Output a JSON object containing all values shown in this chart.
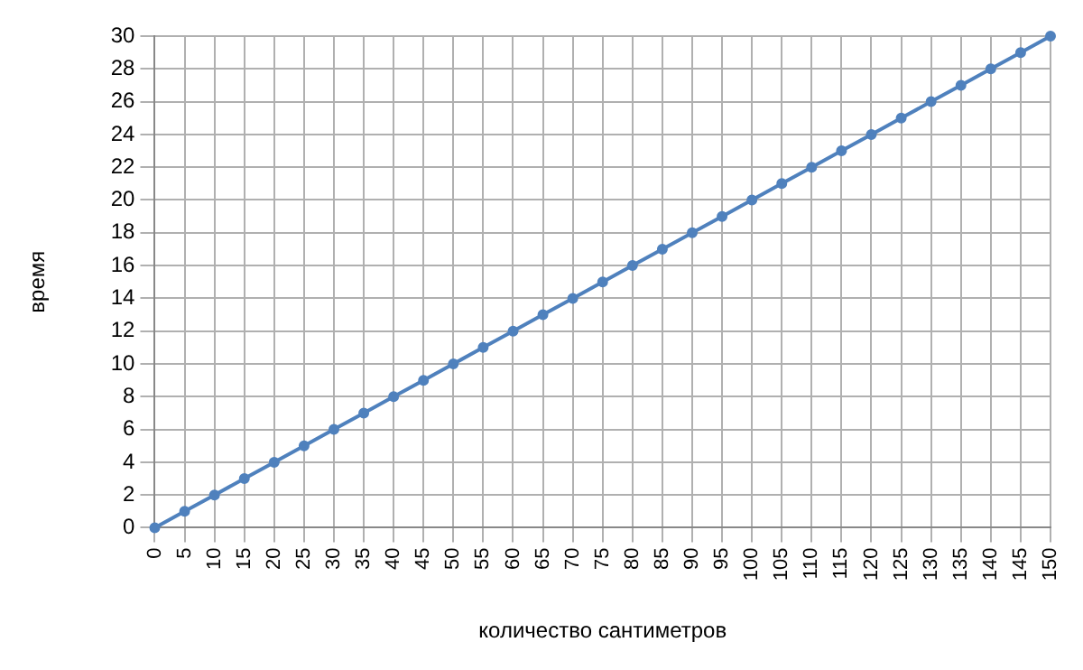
{
  "chart_data": {
    "type": "line",
    "xlabel": "количество сантиметров",
    "ylabel": "время",
    "x": [
      0,
      5,
      10,
      15,
      20,
      25,
      30,
      35,
      40,
      45,
      50,
      55,
      60,
      65,
      70,
      75,
      80,
      85,
      90,
      95,
      100,
      105,
      110,
      115,
      120,
      125,
      130,
      135,
      140,
      145,
      150
    ],
    "series": [
      {
        "color": "#4f81bd",
        "values": [
          0,
          1,
          2,
          3,
          4,
          5,
          6,
          7,
          8,
          9,
          10,
          11,
          12,
          13,
          14,
          15,
          16,
          17,
          18,
          19,
          20,
          21,
          22,
          23,
          24,
          25,
          26,
          27,
          28,
          29,
          30
        ]
      }
    ],
    "xlim": [
      0,
      150
    ],
    "xticks": [
      0,
      5,
      10,
      15,
      20,
      25,
      30,
      35,
      40,
      45,
      50,
      55,
      60,
      65,
      70,
      75,
      80,
      85,
      90,
      95,
      100,
      105,
      110,
      115,
      120,
      125,
      130,
      135,
      140,
      145,
      150
    ],
    "ylim": [
      0,
      30
    ],
    "yticks": [
      0,
      2,
      4,
      6,
      8,
      10,
      12,
      14,
      16,
      18,
      20,
      22,
      24,
      26,
      28,
      30
    ],
    "grid": true,
    "legend": false,
    "marker": "circle",
    "line_style": "solid"
  }
}
